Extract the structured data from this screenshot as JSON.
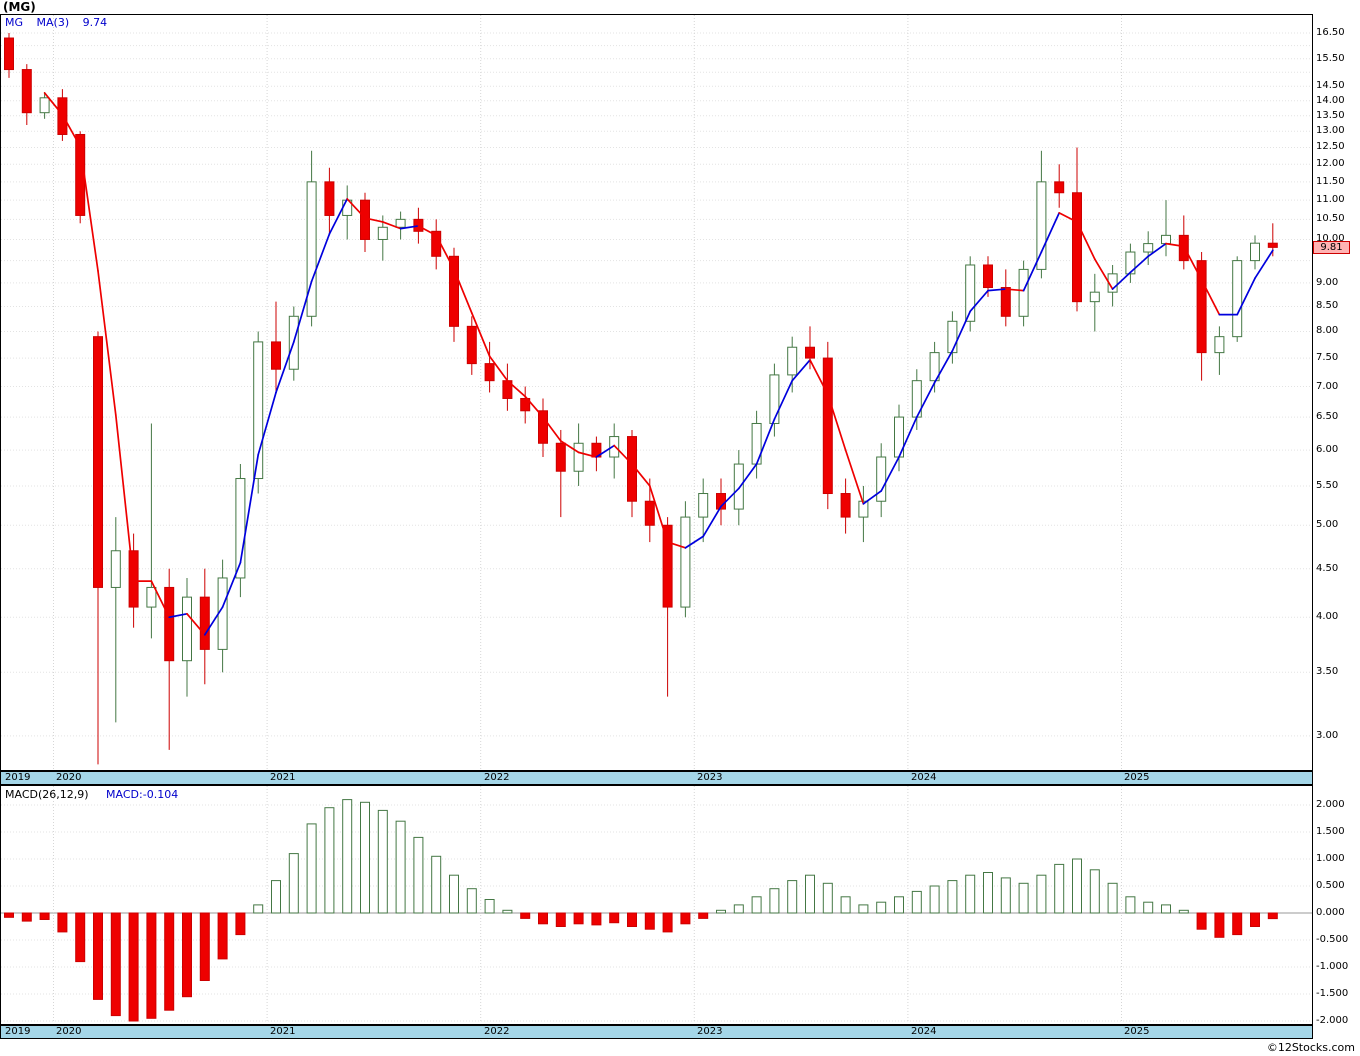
{
  "title": "(MG)",
  "price_panel": {
    "legend": {
      "symbol": "MG",
      "indicator": "MA(3)",
      "value": "9.74"
    },
    "last_price_tag": "9.81",
    "axis_labels": [
      "16.50",
      "15.50",
      "14.50",
      "14.00",
      "13.50",
      "13.00",
      "12.50",
      "12.00",
      "11.50",
      "11.00",
      "10.50",
      "10.00",
      "9.00",
      "8.50",
      "8.00",
      "7.50",
      "7.00",
      "6.50",
      "6.00",
      "5.50",
      "5.00",
      "4.50",
      "4.00",
      "3.50",
      "3.00"
    ]
  },
  "macd_panel": {
    "legend": {
      "indicator": "MACD(26,12,9)",
      "value": "MACD:-0.104"
    },
    "axis_labels": [
      "2.000",
      "1.500",
      "1.000",
      "0.500",
      "0.000",
      "-0.500",
      "-1.000",
      "-1.500",
      "-2.000"
    ]
  },
  "x_axis": {
    "years": [
      "2019",
      "2020",
      "2021",
      "2022",
      "2023",
      "2024",
      "2025"
    ]
  },
  "watermark": "©12Stocks.com",
  "colors": {
    "up_fill": "#ffffff",
    "up_border": "#447744",
    "down_fill": "#ee0000",
    "down_border": "#cc0000",
    "ma_up": "#0000dd",
    "ma_down": "#ee0000",
    "strip_bg": "#a4d6e8",
    "tag_bg": "#ffb3b3",
    "legend_blue": "#0000cc",
    "gridline": "#e3e3e3"
  },
  "chart_data": [
    {
      "type": "candlestick",
      "title": "MG monthly price with MA(3) overlay",
      "y_scale": "log",
      "ylim": [
        3.0,
        16.5
      ],
      "last_close": 9.81,
      "ma3_last": 9.74,
      "x_months": [
        "2019-10",
        "2019-11",
        "2019-12",
        "2020-01",
        "2020-02",
        "2020-03",
        "2020-04",
        "2020-05",
        "2020-06",
        "2020-07",
        "2020-08",
        "2020-09",
        "2020-10",
        "2020-11",
        "2020-12",
        "2021-01",
        "2021-02",
        "2021-03",
        "2021-04",
        "2021-05",
        "2021-06",
        "2021-07",
        "2021-08",
        "2021-09",
        "2021-10",
        "2021-11",
        "2021-12",
        "2022-01",
        "2022-02",
        "2022-03",
        "2022-04",
        "2022-05",
        "2022-06",
        "2022-07",
        "2022-08",
        "2022-09",
        "2022-10",
        "2022-11",
        "2022-12",
        "2023-01",
        "2023-02",
        "2023-03",
        "2023-04",
        "2023-05",
        "2023-06",
        "2023-07",
        "2023-08",
        "2023-09",
        "2023-10",
        "2023-11",
        "2023-12",
        "2024-01",
        "2024-02",
        "2024-03",
        "2024-04",
        "2024-05",
        "2024-06",
        "2024-07",
        "2024-08",
        "2024-09",
        "2024-10",
        "2024-11",
        "2024-12",
        "2025-01",
        "2025-02",
        "2025-03",
        "2025-04",
        "2025-05",
        "2025-06",
        "2025-07",
        "2025-08",
        "2025-09"
      ],
      "ohlc": [
        [
          16.3,
          16.5,
          14.8,
          15.1
        ],
        [
          15.1,
          15.3,
          13.2,
          13.6
        ],
        [
          13.6,
          14.3,
          13.4,
          14.1
        ],
        [
          14.1,
          14.4,
          12.7,
          12.9
        ],
        [
          12.9,
          13.0,
          10.4,
          10.6
        ],
        [
          7.9,
          8.0,
          2.8,
          4.3
        ],
        [
          4.3,
          5.1,
          3.1,
          4.7
        ],
        [
          4.7,
          4.9,
          3.9,
          4.1
        ],
        [
          4.1,
          6.4,
          3.8,
          4.3
        ],
        [
          4.3,
          4.5,
          2.9,
          3.6
        ],
        [
          3.6,
          4.4,
          3.3,
          4.2
        ],
        [
          4.2,
          4.5,
          3.4,
          3.7
        ],
        [
          3.7,
          4.6,
          3.5,
          4.4
        ],
        [
          4.4,
          5.8,
          4.2,
          5.6
        ],
        [
          5.6,
          8.0,
          5.4,
          7.8
        ],
        [
          7.8,
          8.6,
          6.9,
          7.3
        ],
        [
          7.3,
          8.5,
          7.1,
          8.3
        ],
        [
          8.3,
          12.4,
          8.1,
          11.5
        ],
        [
          11.5,
          11.9,
          10.1,
          10.6
        ],
        [
          10.6,
          11.4,
          10.0,
          11.0
        ],
        [
          11.0,
          11.2,
          9.7,
          10.0
        ],
        [
          10.0,
          10.6,
          9.5,
          10.3
        ],
        [
          10.3,
          10.7,
          10.0,
          10.5
        ],
        [
          10.5,
          10.8,
          9.9,
          10.2
        ],
        [
          10.2,
          10.5,
          9.3,
          9.6
        ],
        [
          9.6,
          9.8,
          7.8,
          8.1
        ],
        [
          8.1,
          8.3,
          7.2,
          7.4
        ],
        [
          7.4,
          7.8,
          6.9,
          7.1
        ],
        [
          7.1,
          7.4,
          6.6,
          6.8
        ],
        [
          6.8,
          7.0,
          6.4,
          6.6
        ],
        [
          6.6,
          6.8,
          5.9,
          6.1
        ],
        [
          6.1,
          6.3,
          5.1,
          5.7
        ],
        [
          5.7,
          6.4,
          5.5,
          6.1
        ],
        [
          6.1,
          6.2,
          5.7,
          5.9
        ],
        [
          5.9,
          6.4,
          5.6,
          6.2
        ],
        [
          6.2,
          6.3,
          5.1,
          5.3
        ],
        [
          5.3,
          5.6,
          4.8,
          5.0
        ],
        [
          5.0,
          5.1,
          3.3,
          4.1
        ],
        [
          4.1,
          5.3,
          4.0,
          5.1
        ],
        [
          5.1,
          5.6,
          4.8,
          5.4
        ],
        [
          5.4,
          5.6,
          5.0,
          5.2
        ],
        [
          5.2,
          6.0,
          5.0,
          5.8
        ],
        [
          5.8,
          6.6,
          5.6,
          6.4
        ],
        [
          6.4,
          7.4,
          6.2,
          7.2
        ],
        [
          7.2,
          7.9,
          6.9,
          7.7
        ],
        [
          7.7,
          8.1,
          7.3,
          7.5
        ],
        [
          7.5,
          7.8,
          5.2,
          5.4
        ],
        [
          5.4,
          5.6,
          4.9,
          5.1
        ],
        [
          5.1,
          5.5,
          4.8,
          5.3
        ],
        [
          5.3,
          6.1,
          5.1,
          5.9
        ],
        [
          5.9,
          6.7,
          5.7,
          6.5
        ],
        [
          6.5,
          7.3,
          6.3,
          7.1
        ],
        [
          7.1,
          7.8,
          6.9,
          7.6
        ],
        [
          7.6,
          8.4,
          7.4,
          8.2
        ],
        [
          8.2,
          9.6,
          8.0,
          9.4
        ],
        [
          9.4,
          9.6,
          8.7,
          8.9
        ],
        [
          8.9,
          9.3,
          8.1,
          8.3
        ],
        [
          8.3,
          9.5,
          8.1,
          9.3
        ],
        [
          9.3,
          12.4,
          9.1,
          11.5
        ],
        [
          11.5,
          12.0,
          10.8,
          11.2
        ],
        [
          11.2,
          12.5,
          8.4,
          8.6
        ],
        [
          8.6,
          9.2,
          8.0,
          8.8
        ],
        [
          8.8,
          9.4,
          8.5,
          9.2
        ],
        [
          9.2,
          9.9,
          9.0,
          9.7
        ],
        [
          9.7,
          10.2,
          9.4,
          9.9
        ],
        [
          9.9,
          11.0,
          9.6,
          10.1
        ],
        [
          10.1,
          10.6,
          9.3,
          9.5
        ],
        [
          9.5,
          9.7,
          7.1,
          7.6
        ],
        [
          7.6,
          8.1,
          7.2,
          7.9
        ],
        [
          7.9,
          9.6,
          7.8,
          9.5
        ],
        [
          9.5,
          10.1,
          9.3,
          9.91
        ],
        [
          9.91,
          10.4,
          9.6,
          9.81
        ]
      ]
    },
    {
      "type": "bar",
      "title": "MACD(26,12,9) histogram",
      "x_months_same_as_candles": true,
      "ylim": [
        -2.0,
        2.2
      ],
      "last_value": -0.104,
      "values": [
        -0.08,
        -0.15,
        -0.12,
        -0.35,
        -0.9,
        -1.6,
        -1.9,
        -2.0,
        -1.95,
        -1.8,
        -1.55,
        -1.25,
        -0.85,
        -0.4,
        0.15,
        0.6,
        1.1,
        1.65,
        1.95,
        2.1,
        2.05,
        1.9,
        1.7,
        1.4,
        1.05,
        0.7,
        0.45,
        0.25,
        0.05,
        -0.1,
        -0.2,
        -0.25,
        -0.2,
        -0.22,
        -0.18,
        -0.25,
        -0.3,
        -0.35,
        -0.2,
        -0.1,
        0.05,
        0.15,
        0.3,
        0.45,
        0.6,
        0.7,
        0.55,
        0.3,
        0.15,
        0.2,
        0.3,
        0.4,
        0.5,
        0.6,
        0.7,
        0.75,
        0.65,
        0.55,
        0.7,
        0.9,
        1.0,
        0.8,
        0.55,
        0.3,
        0.2,
        0.15,
        0.05,
        -0.3,
        -0.45,
        -0.4,
        -0.25,
        -0.104
      ]
    }
  ]
}
